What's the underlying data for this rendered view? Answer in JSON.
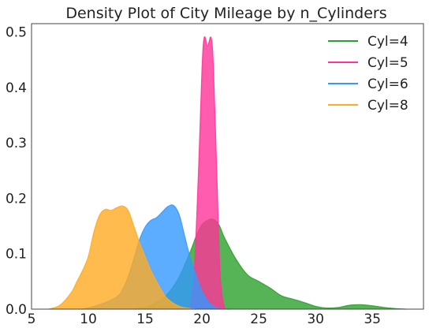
{
  "chart_data": {
    "type": "area",
    "title": "Density Plot of City Mileage by n_Cylinders",
    "xlabel": "",
    "ylabel": "",
    "xlim": [
      5,
      39.5
    ],
    "ylim": [
      0,
      0.515
    ],
    "xticks": [
      "5",
      "10",
      "15",
      "20",
      "25",
      "30",
      "35"
    ],
    "yticks": [
      "0.0",
      "0.1",
      "0.2",
      "0.3",
      "0.4",
      "0.5"
    ],
    "grid": false,
    "legend_position": "top-right",
    "series": [
      {
        "name": "Cyl=4",
        "color": "#2ca02c",
        "points": [
          [
            14,
            0
          ],
          [
            15,
            0.004
          ],
          [
            16,
            0.012
          ],
          [
            17,
            0.028
          ],
          [
            18,
            0.058
          ],
          [
            19,
            0.105
          ],
          [
            19.5,
            0.132
          ],
          [
            20,
            0.152
          ],
          [
            20.5,
            0.16
          ],
          [
            21,
            0.162
          ],
          [
            21.5,
            0.152
          ],
          [
            22,
            0.128
          ],
          [
            23,
            0.09
          ],
          [
            24,
            0.062
          ],
          [
            25,
            0.05
          ],
          [
            26,
            0.038
          ],
          [
            27,
            0.024
          ],
          [
            28,
            0.018
          ],
          [
            29,
            0.012
          ],
          [
            30,
            0.005
          ],
          [
            31,
            0.002
          ],
          [
            32,
            0.003
          ],
          [
            33,
            0.007
          ],
          [
            34,
            0.008
          ],
          [
            35,
            0.006
          ],
          [
            36,
            0.003
          ],
          [
            37,
            0.001
          ],
          [
            38,
            0
          ]
        ]
      },
      {
        "name": "Cyl=5",
        "color": "#ff3399",
        "points": [
          [
            18.9,
            0
          ],
          [
            19.3,
            0.06
          ],
          [
            19.7,
            0.25
          ],
          [
            20.0,
            0.43
          ],
          [
            20.2,
            0.49
          ],
          [
            20.5,
            0.475
          ],
          [
            20.8,
            0.49
          ],
          [
            21.0,
            0.44
          ],
          [
            21.3,
            0.25
          ],
          [
            21.6,
            0.06
          ],
          [
            22.0,
            0
          ]
        ]
      },
      {
        "name": "Cyl=6",
        "color": "#3399ff",
        "points": [
          [
            9.5,
            0
          ],
          [
            10.5,
            0.005
          ],
          [
            11.5,
            0.012
          ],
          [
            12.5,
            0.022
          ],
          [
            13,
            0.035
          ],
          [
            13.5,
            0.058
          ],
          [
            14,
            0.09
          ],
          [
            14.5,
            0.125
          ],
          [
            15,
            0.148
          ],
          [
            15.5,
            0.16
          ],
          [
            16,
            0.165
          ],
          [
            16.5,
            0.175
          ],
          [
            17,
            0.185
          ],
          [
            17.5,
            0.187
          ],
          [
            18,
            0.17
          ],
          [
            18.5,
            0.13
          ],
          [
            19,
            0.09
          ],
          [
            19.5,
            0.06
          ],
          [
            20,
            0.032
          ],
          [
            20.5,
            0.015
          ],
          [
            21,
            0.005
          ],
          [
            21.5,
            0.001
          ],
          [
            22.5,
            0
          ]
        ]
      },
      {
        "name": "Cyl=8",
        "color": "#ffaa22",
        "points": [
          [
            6.5,
            0
          ],
          [
            7.5,
            0.007
          ],
          [
            8.5,
            0.03
          ],
          [
            9,
            0.05
          ],
          [
            9.5,
            0.07
          ],
          [
            10,
            0.095
          ],
          [
            10.5,
            0.14
          ],
          [
            11,
            0.17
          ],
          [
            11.5,
            0.18
          ],
          [
            12,
            0.178
          ],
          [
            12.5,
            0.183
          ],
          [
            13,
            0.186
          ],
          [
            13.5,
            0.178
          ],
          [
            14,
            0.15
          ],
          [
            14.5,
            0.12
          ],
          [
            15,
            0.095
          ],
          [
            15.5,
            0.07
          ],
          [
            16,
            0.05
          ],
          [
            16.5,
            0.032
          ],
          [
            17,
            0.018
          ],
          [
            18,
            0.005
          ],
          [
            19,
            0.001
          ],
          [
            19.5,
            0
          ]
        ]
      }
    ]
  }
}
